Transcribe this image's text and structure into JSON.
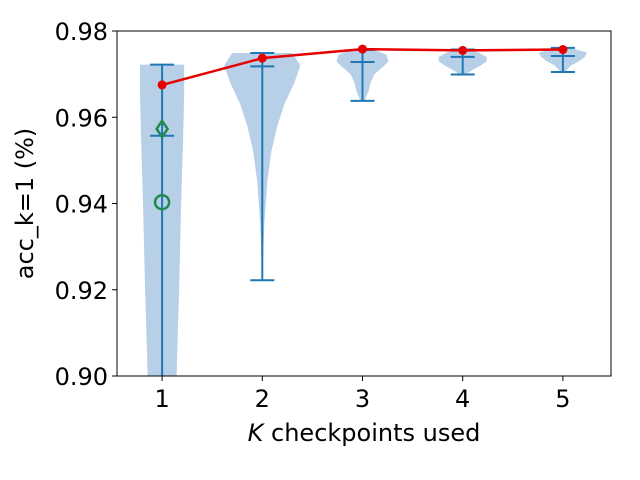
{
  "chart_data": {
    "type": "violin",
    "xlabel_italic": "K",
    "xlabel_rest": " checkpoints used",
    "ylabel": "acc_k=1 (%)",
    "x_ticks": [
      "1",
      "2",
      "3",
      "4",
      "5"
    ],
    "y_ticks": [
      "0.90",
      "0.92",
      "0.94",
      "0.96",
      "0.98"
    ],
    "x_values": [
      1,
      2,
      3,
      4,
      5
    ],
    "y_tick_values": [
      0.9,
      0.92,
      0.94,
      0.96,
      0.98
    ],
    "xlim": [
      0.55,
      5.48
    ],
    "ylim": [
      0.9,
      0.98
    ],
    "grid": false,
    "violins": [
      {
        "x": 1,
        "min": 0.872,
        "median": 0.9557,
        "max": 0.9722,
        "profile": [
          [
            0.872,
            0.02
          ],
          [
            0.885,
            0.12
          ],
          [
            0.895,
            0.14
          ],
          [
            0.905,
            0.15
          ],
          [
            0.92,
            0.17
          ],
          [
            0.94,
            0.19
          ],
          [
            0.955,
            0.21
          ],
          [
            0.965,
            0.22
          ],
          [
            0.9722,
            0.22
          ]
        ]
      },
      {
        "x": 2,
        "min": 0.9222,
        "median": 0.9718,
        "max": 0.9749,
        "profile": [
          [
            0.9222,
            0.0
          ],
          [
            0.935,
            0.02
          ],
          [
            0.945,
            0.05
          ],
          [
            0.952,
            0.09
          ],
          [
            0.958,
            0.15
          ],
          [
            0.963,
            0.22
          ],
          [
            0.968,
            0.32
          ],
          [
            0.972,
            0.38
          ],
          [
            0.9749,
            0.3
          ]
        ]
      },
      {
        "x": 3,
        "min": 0.9638,
        "median": 0.9728,
        "max": 0.9756,
        "profile": [
          [
            0.9638,
            0.02
          ],
          [
            0.966,
            0.06
          ],
          [
            0.968,
            0.08
          ],
          [
            0.97,
            0.12
          ],
          [
            0.972,
            0.22
          ],
          [
            0.973,
            0.26
          ],
          [
            0.9745,
            0.24
          ],
          [
            0.9756,
            0.12
          ]
        ]
      },
      {
        "x": 4,
        "min": 0.9699,
        "median": 0.974,
        "max": 0.9757,
        "profile": [
          [
            0.9699,
            0.03
          ],
          [
            0.971,
            0.1
          ],
          [
            0.972,
            0.18
          ],
          [
            0.973,
            0.24
          ],
          [
            0.974,
            0.24
          ],
          [
            0.975,
            0.16
          ],
          [
            0.9757,
            0.06
          ]
        ]
      },
      {
        "x": 5,
        "min": 0.9705,
        "median": 0.9742,
        "max": 0.9761,
        "profile": [
          [
            0.9705,
            0.02
          ],
          [
            0.972,
            0.08
          ],
          [
            0.973,
            0.16
          ],
          [
            0.974,
            0.22
          ],
          [
            0.975,
            0.24
          ],
          [
            0.9761,
            0.08
          ]
        ]
      }
    ],
    "mean_line": {
      "color": "#e60000",
      "values": [
        0.9675,
        0.9737,
        0.9758,
        0.9755,
        0.9757
      ]
    },
    "extra_markers": [
      {
        "x": 1,
        "y": 0.9573,
        "shape": "diamond",
        "color": "#1f8a4c"
      },
      {
        "x": 1,
        "y": 0.9403,
        "shape": "circle",
        "color": "#1f8a4c"
      }
    ],
    "colors": {
      "violin_fill": "#aac8e4",
      "violin_stats": "#1f77b4"
    }
  }
}
